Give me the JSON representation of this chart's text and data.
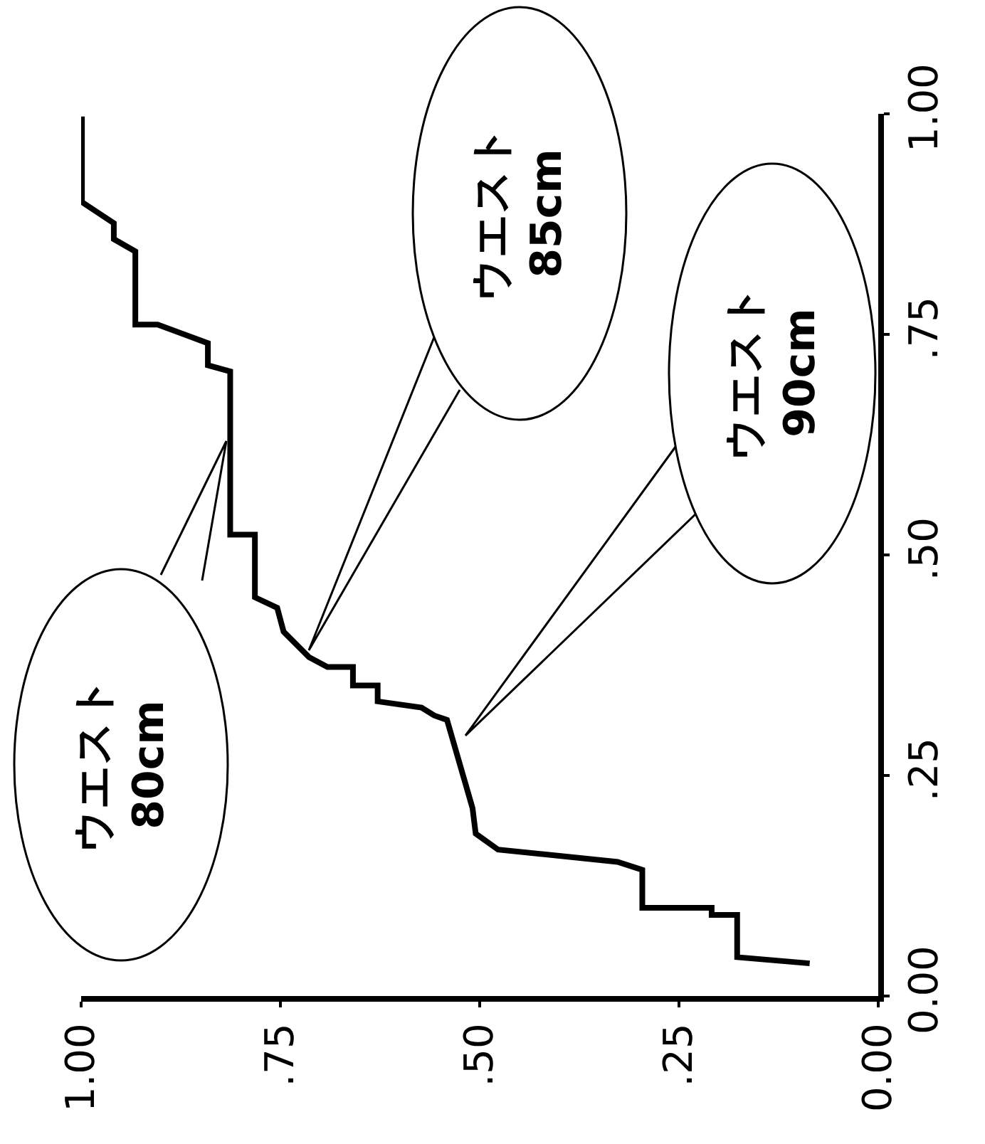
{
  "chart_data": {
    "type": "line",
    "x": [
      0.086,
      0.177,
      0.177,
      0.209,
      0.209,
      0.296,
      0.296,
      0.327,
      0.477,
      0.505,
      0.509,
      0.541,
      0.557,
      0.573,
      0.628,
      0.628,
      0.659,
      0.659,
      0.691,
      0.714,
      0.746,
      0.754,
      0.782,
      0.782,
      0.782,
      0.813,
      0.813,
      0.841,
      0.841,
      0.904,
      0.932,
      0.932,
      0.959,
      0.959,
      0.999,
      0.999
    ],
    "series": [
      {
        "color": "#000000",
        "values": [
          0.037,
          0.044,
          0.092,
          0.092,
          0.1,
          0.1,
          0.143,
          0.152,
          0.166,
          0.184,
          0.213,
          0.313,
          0.318,
          0.327,
          0.334,
          0.352,
          0.352,
          0.373,
          0.373,
          0.384,
          0.413,
          0.44,
          0.452,
          0.484,
          0.523,
          0.523,
          0.708,
          0.715,
          0.74,
          0.761,
          0.761,
          0.844,
          0.858,
          0.876,
          0.9,
          0.997
        ]
      }
    ],
    "xlim": [
      1,
      0
    ],
    "ylim": [
      0,
      1
    ],
    "xticks": [
      {
        "value": 1,
        "label": "1.00"
      },
      {
        "value": 0.75,
        "label": ".75"
      },
      {
        "value": 0.5,
        "label": ".50"
      },
      {
        "value": 0.25,
        "label": ".25"
      },
      {
        "value": 0,
        "label": "0.00"
      }
    ],
    "yticks": [
      {
        "value": 0,
        "label": "0.00"
      },
      {
        "value": 0.25,
        "label": ".25"
      },
      {
        "value": 0.5,
        "label": ".50"
      },
      {
        "value": 0.75,
        "label": ".75"
      },
      {
        "value": 1,
        "label": "1.00"
      }
    ],
    "annotations": [
      "ウエスト\n80cm",
      "ウエスト\n85cm",
      "ウエスト\n90cm"
    ],
    "marker": "none",
    "line_style": "solid"
  }
}
